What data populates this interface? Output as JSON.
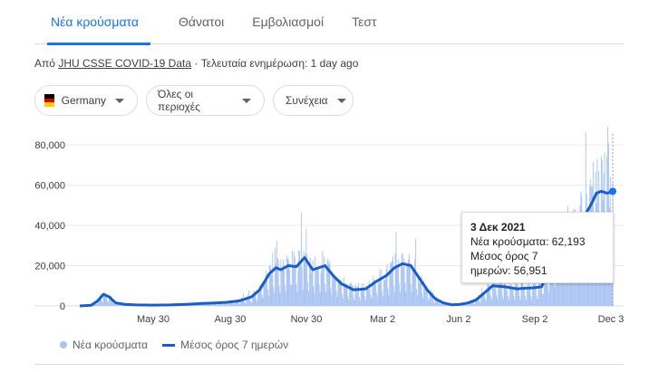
{
  "tabs": [
    "Νέα κρούσματα",
    "Θάνατοι",
    "Εμβολιασμοί",
    "Τεστ"
  ],
  "source": {
    "prefix": "Από",
    "link": "JHU CSSE COVID-19 Data",
    "updated": "· Τελευταία ενημέρωση: 1 day ago"
  },
  "filters": {
    "country": "Germany",
    "region": "Όλες οι περιοχές",
    "range": "Συνέχεια"
  },
  "colors": {
    "accent": "#1a73e8",
    "bars": "#a8c3f2",
    "line": "#1a5ec4",
    "flag": [
      "#000000",
      "#dd0000",
      "#ffce00"
    ]
  },
  "icons": {
    "country": "germany-flag-icon",
    "dropdown": "caret-down-icon"
  },
  "tooltip": {
    "date": "3 Δεκ 2021",
    "new_cases": "Νέα κρούσματα: 62,193",
    "avg_label_1": "Μέσος όρος 7",
    "avg_label_2": "ημερών: 56,951"
  },
  "legend": {
    "bars": "Νέα κρούσματα",
    "line": "Μέσος όρος 7 ημερών"
  },
  "chart_data": {
    "type": "bar",
    "x_ticks": [
      "May 30",
      "Aug 30",
      "Nov 30",
      "Mar 2",
      "Jun 2",
      "Sep 2",
      "Dec 3"
    ],
    "y_ticks": [
      "80,000",
      "60,000",
      "40,000",
      "20,000",
      "0"
    ],
    "ylim": [
      0,
      85000
    ],
    "grid": true,
    "series": [
      {
        "name": "Μέσος όρος 7 ημερών",
        "type": "line",
        "days": [
          0,
          14,
          22,
          29,
          36,
          44,
          55,
          70,
          90,
          110,
          130,
          150,
          165,
          180,
          195,
          210,
          220,
          232,
          240,
          246,
          255,
          265,
          275,
          285,
          300,
          310,
          320,
          335,
          350,
          362,
          375,
          385,
          395,
          405,
          415,
          425,
          435,
          445,
          455,
          465,
          475,
          485,
          495,
          505,
          520,
          535,
          545,
          555,
          565,
          575,
          585,
          595,
          605,
          615,
          625,
          632,
          638,
          645,
          652
        ],
        "values": [
          0,
          300,
          2500,
          5800,
          4500,
          1500,
          800,
          500,
          400,
          500,
          800,
          1200,
          1500,
          1800,
          2500,
          4500,
          8000,
          16000,
          19000,
          18000,
          20000,
          19500,
          24000,
          18000,
          20000,
          15000,
          11000,
          8000,
          8500,
          12000,
          15000,
          19000,
          21000,
          20000,
          14000,
          8000,
          3500,
          1500,
          600,
          800,
          1500,
          3000,
          6500,
          10000,
          9500,
          8500,
          8800,
          9000,
          9500,
          20000,
          31000,
          36000,
          38000,
          43000,
          50000,
          56000,
          57000,
          56000,
          56951
        ]
      }
    ]
  }
}
